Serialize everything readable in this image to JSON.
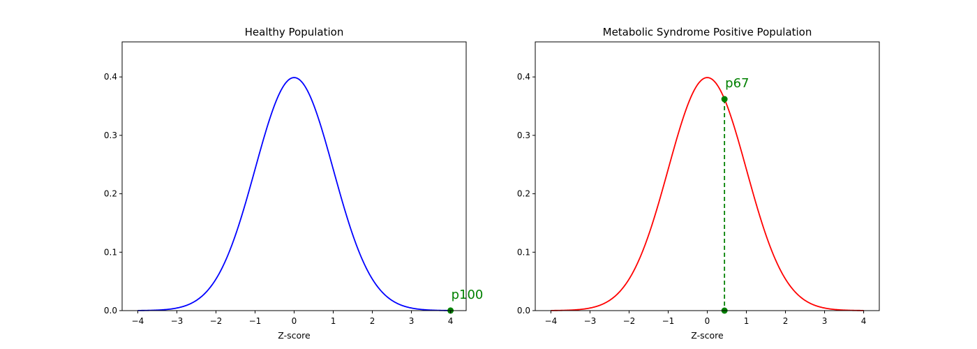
{
  "chart_data": [
    {
      "type": "line",
      "title": "Healthy Population",
      "xlabel": "Z-score",
      "ylabel": "",
      "xlim": [
        -4.4,
        4.4
      ],
      "ylim": [
        0,
        0.46
      ],
      "xticks": [
        -4,
        -3,
        -2,
        -1,
        0,
        1,
        2,
        3,
        4
      ],
      "xtick_labels": [
        "−4",
        "−3",
        "−2",
        "−1",
        "0",
        "1",
        "2",
        "3",
        "4"
      ],
      "yticks": [
        0.0,
        0.1,
        0.2,
        0.3,
        0.4
      ],
      "ytick_labels": [
        "0.0",
        "0.1",
        "0.2",
        "0.3",
        "0.4"
      ],
      "grid": false,
      "series": [
        {
          "curve": "standard-normal-pdf",
          "x_range": [
            -4,
            4
          ],
          "color": "#0000ff"
        }
      ],
      "marker": {
        "x": 4.0,
        "y": 0.0001,
        "label": "p100",
        "color": "#008000",
        "dashed_drop": false
      }
    },
    {
      "type": "line",
      "title": "Metabolic Syndrome Positive Population",
      "xlabel": "Z-score",
      "ylabel": "",
      "xlim": [
        -4.4,
        4.4
      ],
      "ylim": [
        0,
        0.46
      ],
      "xticks": [
        -4,
        -3,
        -2,
        -1,
        0,
        1,
        2,
        3,
        4
      ],
      "xtick_labels": [
        "−4",
        "−3",
        "−2",
        "−1",
        "0",
        "1",
        "2",
        "3",
        "4"
      ],
      "yticks": [
        0.0,
        0.1,
        0.2,
        0.3,
        0.4
      ],
      "ytick_labels": [
        "0.0",
        "0.1",
        "0.2",
        "0.3",
        "0.4"
      ],
      "grid": false,
      "series": [
        {
          "curve": "standard-normal-pdf",
          "x_range": [
            -4,
            4
          ],
          "color": "#ff0000"
        }
      ],
      "marker": {
        "x": 0.44,
        "y": 0.362,
        "label": "p67",
        "color": "#008000",
        "dashed_drop": true
      }
    }
  ]
}
